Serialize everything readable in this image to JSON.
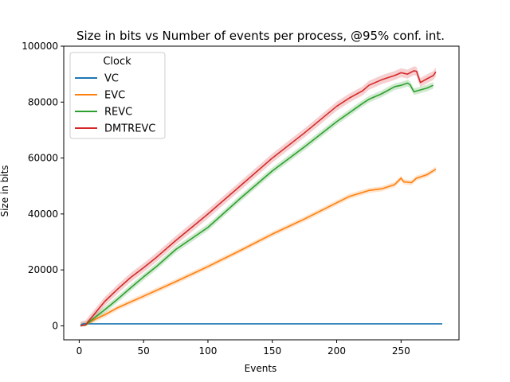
{
  "chart_data": {
    "type": "line",
    "title": "Size in bits vs Number of events per process, @95% conf. int.",
    "xlabel": "Events",
    "ylabel": "Size in bits",
    "xlim": [
      -12,
      295
    ],
    "ylim": [
      -5000,
      100000
    ],
    "xticks": [
      0,
      50,
      100,
      150,
      200,
      250
    ],
    "yticks": [
      0,
      20000,
      40000,
      60000,
      80000,
      100000
    ],
    "grid": false,
    "legend": {
      "title": "Clock",
      "placement": "top-left"
    },
    "confidence_band": "95%",
    "series": [
      {
        "name": "VC",
        "color": "#1f77b4",
        "points": [
          [
            1,
            250
          ],
          [
            3,
            700
          ],
          [
            10,
            700
          ],
          [
            50,
            700
          ],
          [
            100,
            700
          ],
          [
            150,
            700
          ],
          [
            200,
            700
          ],
          [
            250,
            700
          ],
          [
            282,
            700
          ]
        ],
        "band": 0
      },
      {
        "name": "EVC",
        "color": "#ff7f0e",
        "points": [
          [
            1,
            0
          ],
          [
            5,
            200
          ],
          [
            10,
            1800
          ],
          [
            20,
            4000
          ],
          [
            30,
            6500
          ],
          [
            50,
            10600
          ],
          [
            75,
            15800
          ],
          [
            100,
            21200
          ],
          [
            125,
            26900
          ],
          [
            150,
            32800
          ],
          [
            175,
            38200
          ],
          [
            200,
            44000
          ],
          [
            210,
            46300
          ],
          [
            225,
            48400
          ],
          [
            235,
            49000
          ],
          [
            245,
            50500
          ],
          [
            250,
            52800
          ],
          [
            252,
            51500
          ],
          [
            258,
            51200
          ],
          [
            262,
            52800
          ],
          [
            270,
            54000
          ],
          [
            277,
            56000
          ]
        ],
        "band": 900
      },
      {
        "name": "REVC",
        "color": "#2ca02c",
        "points": [
          [
            1,
            0
          ],
          [
            5,
            300
          ],
          [
            10,
            2200
          ],
          [
            20,
            5800
          ],
          [
            30,
            9600
          ],
          [
            40,
            13600
          ],
          [
            50,
            17500
          ],
          [
            60,
            21200
          ],
          [
            75,
            27300
          ],
          [
            100,
            35200
          ],
          [
            125,
            45500
          ],
          [
            150,
            55400
          ],
          [
            175,
            64000
          ],
          [
            200,
            73000
          ],
          [
            220,
            79500
          ],
          [
            225,
            81000
          ],
          [
            235,
            83000
          ],
          [
            245,
            85500
          ],
          [
            250,
            86000
          ],
          [
            255,
            86800
          ],
          [
            257,
            86200
          ],
          [
            260,
            83700
          ],
          [
            270,
            85000
          ],
          [
            275,
            86000
          ]
        ],
        "band": 1200
      },
      {
        "name": "DMTREVC",
        "color": "#d62728",
        "points": [
          [
            1,
            0
          ],
          [
            5,
            400
          ],
          [
            10,
            3200
          ],
          [
            20,
            8800
          ],
          [
            30,
            13200
          ],
          [
            40,
            17300
          ],
          [
            50,
            20800
          ],
          [
            60,
            24500
          ],
          [
            75,
            30500
          ],
          [
            100,
            40000
          ],
          [
            125,
            50000
          ],
          [
            150,
            60000
          ],
          [
            175,
            69000
          ],
          [
            200,
            78500
          ],
          [
            210,
            81500
          ],
          [
            220,
            84000
          ],
          [
            225,
            86000
          ],
          [
            235,
            88000
          ],
          [
            245,
            89500
          ],
          [
            250,
            90500
          ],
          [
            255,
            90000
          ],
          [
            260,
            91200
          ],
          [
            262,
            91000
          ],
          [
            265,
            87000
          ],
          [
            270,
            88300
          ],
          [
            275,
            89500
          ],
          [
            277,
            90800
          ]
        ],
        "band": 1600
      }
    ]
  }
}
